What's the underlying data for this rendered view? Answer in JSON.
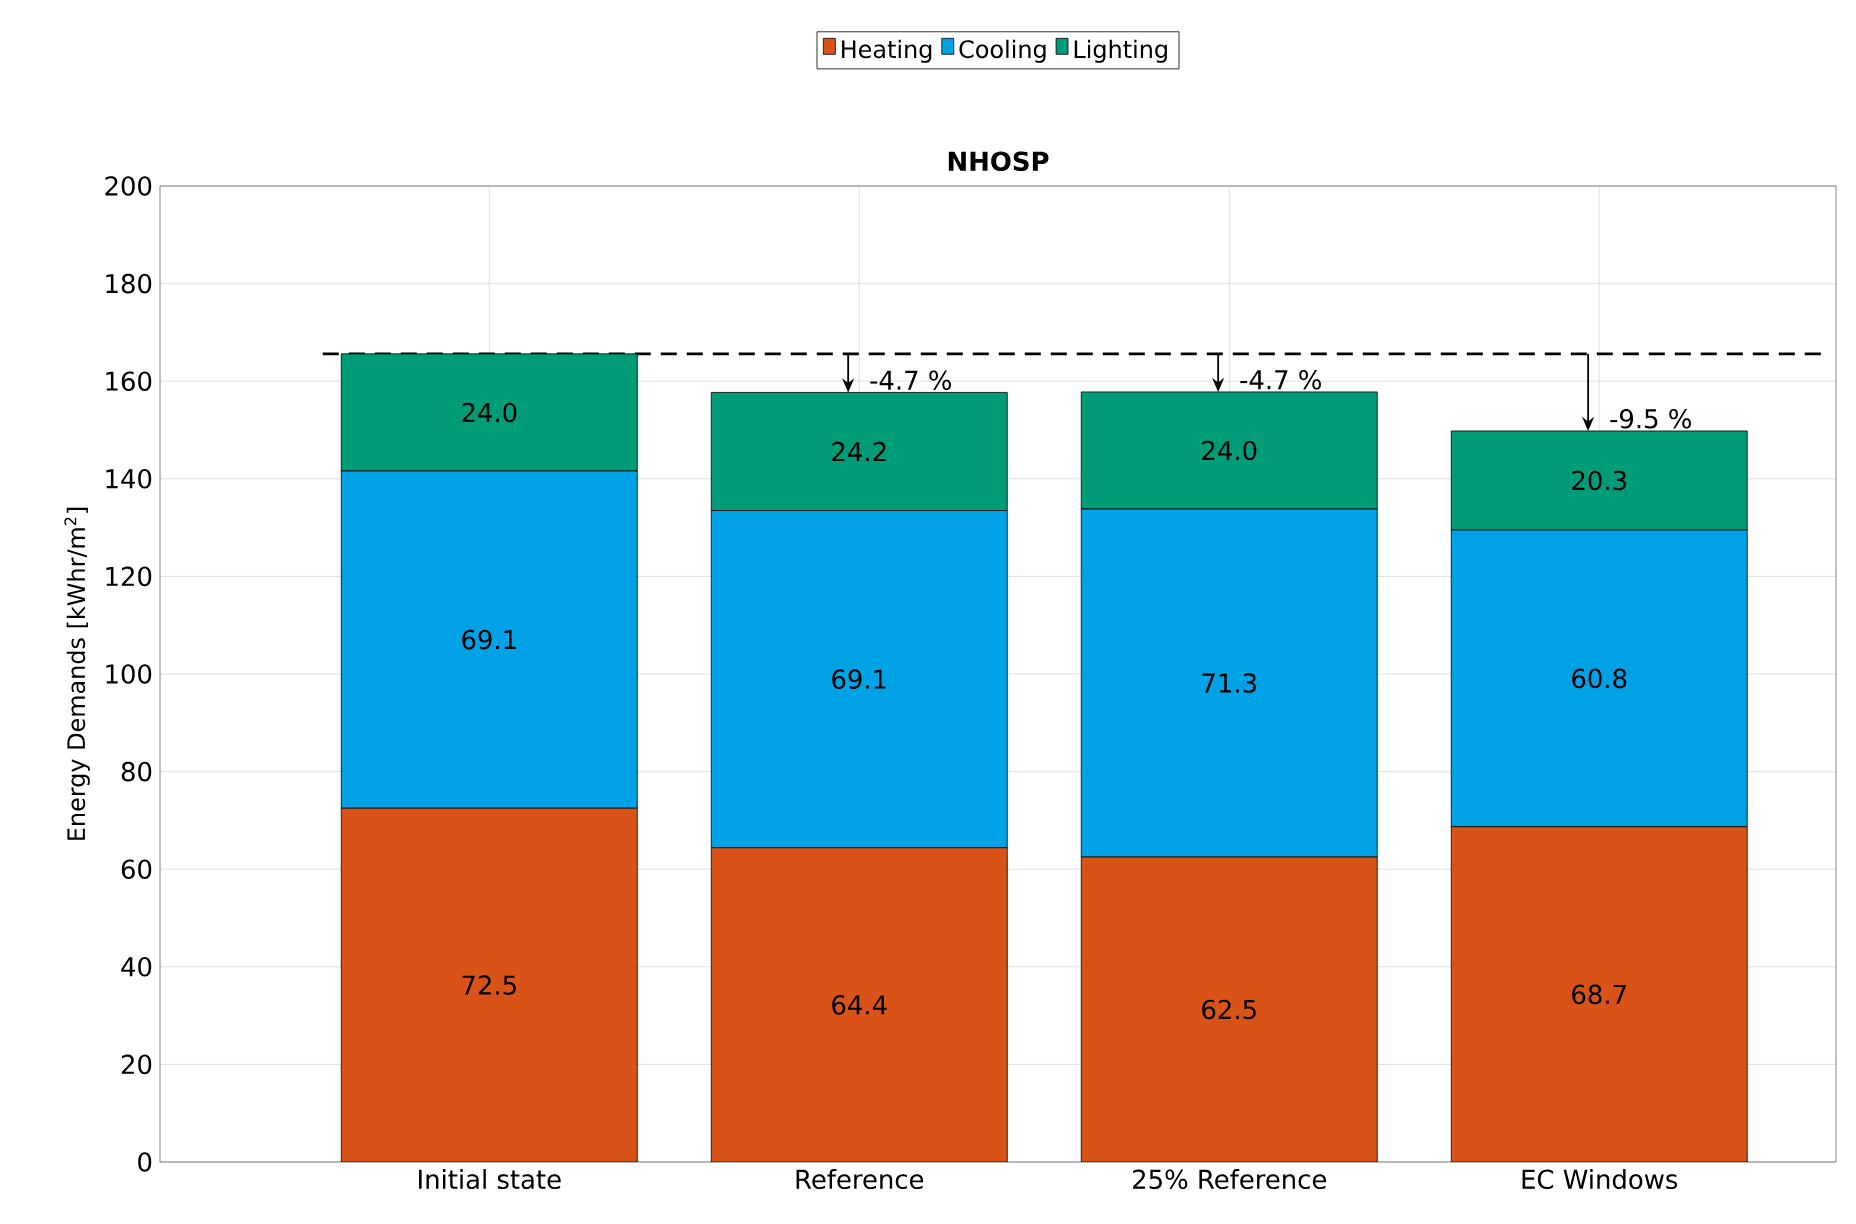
{
  "chart_data": {
    "type": "bar",
    "title": "NHOSP",
    "ylabel": "Energy Demands [kWhr/m$^{2}$]",
    "categories": [
      "Initial state",
      "Reference",
      "25% Reference",
      "EC Windows"
    ],
    "stacked": true,
    "series": [
      {
        "name": "Heating",
        "color": "#d95319",
        "values": [
          72.5,
          64.4,
          62.5,
          68.7
        ],
        "value_labels": [
          "72.5",
          "64.4",
          "62.5",
          "68.7"
        ]
      },
      {
        "name": "Cooling",
        "color": "#00a2e6",
        "values": [
          69.1,
          69.1,
          71.3,
          60.8
        ],
        "value_labels": [
          "69.1",
          "69.1",
          "71.3",
          "60.8"
        ]
      },
      {
        "name": "Lighting",
        "color": "#009b77",
        "values": [
          24.0,
          24.2,
          24.0,
          20.3
        ],
        "value_labels": [
          "24.0",
          "24.2",
          "24.0",
          "20.3"
        ]
      }
    ],
    "ylim": [
      0,
      200
    ],
    "yticks": [
      0,
      20,
      40,
      60,
      80,
      100,
      120,
      140,
      160,
      180,
      200
    ],
    "grid": true,
    "legend": "top",
    "ref_lines": [
      {
        "axis": "y",
        "value": 165.6,
        "color": "#000000",
        "line_style": "dashed"
      }
    ],
    "annotations": [
      {
        "text": "-4.7 %",
        "x": "Reference",
        "y": 157.7
      },
      {
        "text": "-4.7 %",
        "x": "25% Reference",
        "y": 157.8
      },
      {
        "text": "-9.5 %",
        "x": "EC Windows",
        "y": 149.8
      }
    ]
  }
}
